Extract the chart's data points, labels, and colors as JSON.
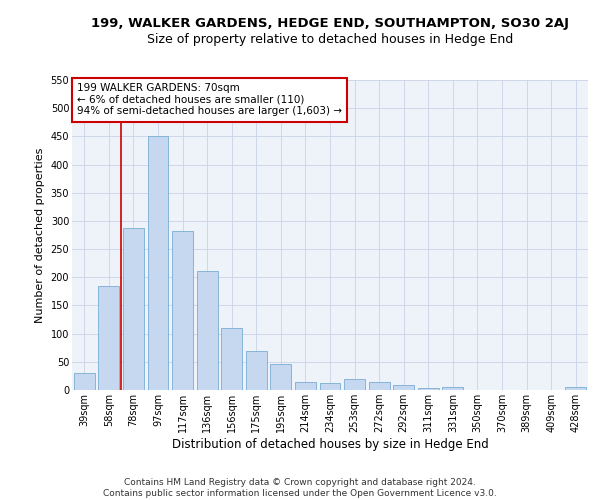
{
  "title": "199, WALKER GARDENS, HEDGE END, SOUTHAMPTON, SO30 2AJ",
  "subtitle": "Size of property relative to detached houses in Hedge End",
  "xlabel": "Distribution of detached houses by size in Hedge End",
  "ylabel": "Number of detached properties",
  "categories": [
    "39sqm",
    "58sqm",
    "78sqm",
    "97sqm",
    "117sqm",
    "136sqm",
    "156sqm",
    "175sqm",
    "195sqm",
    "214sqm",
    "234sqm",
    "253sqm",
    "272sqm",
    "292sqm",
    "311sqm",
    "331sqm",
    "350sqm",
    "370sqm",
    "389sqm",
    "409sqm",
    "428sqm"
  ],
  "values": [
    30,
    185,
    288,
    450,
    282,
    212,
    110,
    70,
    46,
    15,
    12,
    20,
    14,
    8,
    4,
    6,
    0,
    0,
    0,
    0,
    5
  ],
  "bar_color": "#c5d8f0",
  "bar_edge_color": "#7aadd4",
  "vline_x": 1.5,
  "vline_color": "#cc0000",
  "annotation_text": "199 WALKER GARDENS: 70sqm\n← 6% of detached houses are smaller (110)\n94% of semi-detached houses are larger (1,603) →",
  "annotation_box_color": "#ffffff",
  "annotation_box_edge": "#cc0000",
  "ylim": [
    0,
    550
  ],
  "yticks": [
    0,
    50,
    100,
    150,
    200,
    250,
    300,
    350,
    400,
    450,
    500,
    550
  ],
  "background_color": "#eef2f9",
  "footer_line1": "Contains HM Land Registry data © Crown copyright and database right 2024.",
  "footer_line2": "Contains public sector information licensed under the Open Government Licence v3.0.",
  "title_fontsize": 9.5,
  "subtitle_fontsize": 9,
  "xlabel_fontsize": 8.5,
  "ylabel_fontsize": 8,
  "tick_fontsize": 7,
  "annotation_fontsize": 7.5,
  "footer_fontsize": 6.5
}
